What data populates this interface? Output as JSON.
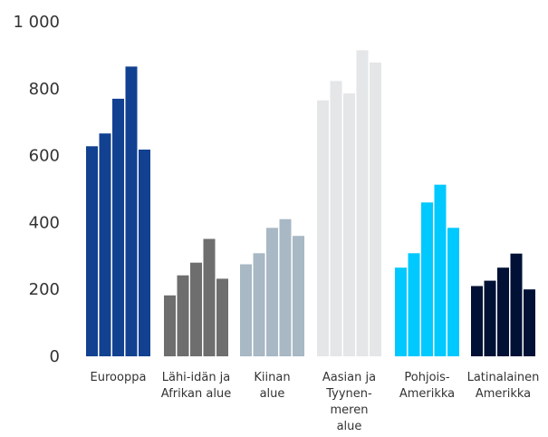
{
  "chart_data": {
    "type": "bar",
    "title": "",
    "xlabel": "",
    "ylabel": "",
    "ylim": [
      0,
      1000
    ],
    "y_ticks": [
      {
        "value": 0,
        "label": "0"
      },
      {
        "value": 200,
        "label": "200"
      },
      {
        "value": 400,
        "label": "400"
      },
      {
        "value": 600,
        "label": "600"
      },
      {
        "value": 800,
        "label": "800"
      },
      {
        "value": 1000,
        "label": "1 000"
      }
    ],
    "grid": false,
    "groups": [
      {
        "category": "Eurooppa",
        "label_lines": [
          "Eurooppa"
        ],
        "color": "#124191",
        "values": [
          628,
          666,
          770,
          866,
          618
        ]
      },
      {
        "category": "Lähi-idän ja Afrikan alue",
        "label_lines": [
          "Lähi-idän ja",
          "Afrikan alue"
        ],
        "color": "#6e6e6e",
        "values": [
          182,
          242,
          280,
          351,
          232
        ]
      },
      {
        "category": "Kiinan alue",
        "label_lines": [
          "Kiinan",
          "alue"
        ],
        "color": "#a8b8c4",
        "values": [
          275,
          308,
          384,
          410,
          360
        ]
      },
      {
        "category": "Aasian ja Tyynenmeren alue",
        "label_lines": [
          "Aasian ja",
          "Tyynen-",
          "meren",
          "alue"
        ],
        "color": "#e5e6e8",
        "values": [
          765,
          823,
          786,
          915,
          878
        ]
      },
      {
        "category": "Pohjois-Amerikka",
        "label_lines": [
          "Pohjois-",
          "Amerikka"
        ],
        "color": "#00c9ff",
        "values": [
          265,
          308,
          460,
          513,
          384
        ]
      },
      {
        "category": "Latinalainen Amerikka",
        "label_lines": [
          "Latinalainen",
          "Amerikka"
        ],
        "color": "#001135",
        "values": [
          210,
          226,
          265,
          307,
          200
        ]
      }
    ]
  }
}
